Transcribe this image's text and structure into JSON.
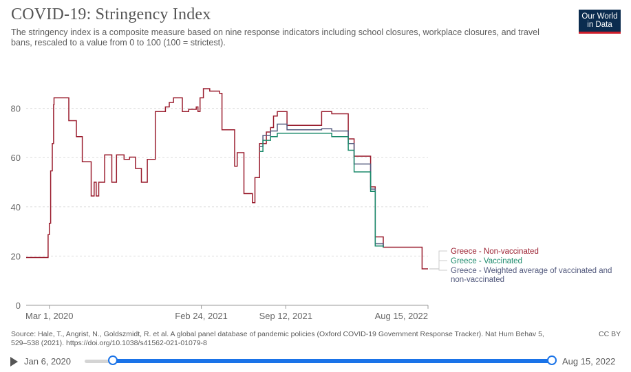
{
  "header": {
    "title": "COVID-19: Stringency Index",
    "subtitle": "The stringency index is a composite measure based on nine response indicators including school closures, workplace closures, and travel bans, rescaled to a value from 0 to 100 (100 = strictest).",
    "logo_line1": "Our World",
    "logo_line2": "in Data"
  },
  "footer": {
    "source": "Source: Hale, T., Angrist, N., Goldszmidt, R. et al. A global panel database of pandemic policies (Oxford COVID-19 Government Response Tracker). Nat Hum Behav 5, 529–538 (2021). https://doi.org/10.1038/s41562-021-01079-8",
    "license": "CC BY"
  },
  "timeline": {
    "start_label": "Jan 6, 2020",
    "end_label": "Aug 15, 2022"
  },
  "colors": {
    "non_vaccinated": "#9a1d2e",
    "vaccinated": "#1b8a6b",
    "weighted": "#535a7e",
    "grid": "#dddddd",
    "slider": "#1a73e8"
  },
  "chart_data": {
    "type": "line",
    "x_axis_type": "date",
    "xlim": [
      "2020-01-06",
      "2022-08-15"
    ],
    "ylim": [
      0,
      100
    ],
    "yticks": [
      0,
      20,
      40,
      60,
      80
    ],
    "xticks": [
      {
        "date": "2020-03-01",
        "label": "Mar 1, 2020"
      },
      {
        "date": "2021-02-24",
        "label": "Feb 24, 2021"
      },
      {
        "date": "2021-09-12",
        "label": "Sep 12, 2021"
      },
      {
        "date": "2022-08-15",
        "label": "Aug 15, 2022"
      }
    ],
    "grid": true,
    "legend_position": "right",
    "series": [
      {
        "name": "Greece - Non-vaccinated",
        "color_key": "non_vaccinated",
        "points": [
          [
            "2020-01-06",
            19.4
          ],
          [
            "2020-02-26",
            19.4
          ],
          [
            "2020-02-27",
            28.7
          ],
          [
            "2020-03-01",
            33.3
          ],
          [
            "2020-03-04",
            54.6
          ],
          [
            "2020-03-08",
            65.7
          ],
          [
            "2020-03-11",
            81.5
          ],
          [
            "2020-03-12",
            84.3
          ],
          [
            "2020-04-15",
            84.3
          ],
          [
            "2020-04-16",
            75.0
          ],
          [
            "2020-05-04",
            68.5
          ],
          [
            "2020-05-18",
            58.3
          ],
          [
            "2020-06-01",
            58.3
          ],
          [
            "2020-06-08",
            44.4
          ],
          [
            "2020-06-15",
            50.0
          ],
          [
            "2020-06-20",
            44.4
          ],
          [
            "2020-06-26",
            50.0
          ],
          [
            "2020-07-10",
            61.1
          ],
          [
            "2020-07-27",
            50.0
          ],
          [
            "2020-08-07",
            61.1
          ],
          [
            "2020-08-25",
            59.3
          ],
          [
            "2020-09-07",
            60.2
          ],
          [
            "2020-09-21",
            55.6
          ],
          [
            "2020-10-05",
            50.0
          ],
          [
            "2020-10-19",
            59.3
          ],
          [
            "2020-11-07",
            78.7
          ],
          [
            "2020-11-20",
            78.7
          ],
          [
            "2020-12-01",
            80.6
          ],
          [
            "2020-12-10",
            82.4
          ],
          [
            "2020-12-20",
            84.3
          ],
          [
            "2021-01-10",
            78.7
          ],
          [
            "2021-01-25",
            79.6
          ],
          [
            "2021-02-05",
            79.6
          ],
          [
            "2021-02-12",
            80.6
          ],
          [
            "2021-02-16",
            78.7
          ],
          [
            "2021-02-21",
            84.3
          ],
          [
            "2021-03-01",
            88.0
          ],
          [
            "2021-03-16",
            87.0
          ],
          [
            "2021-04-08",
            86.1
          ],
          [
            "2021-04-14",
            71.3
          ],
          [
            "2021-05-14",
            56.5
          ],
          [
            "2021-05-20",
            62.0
          ],
          [
            "2021-06-01",
            62.0
          ],
          [
            "2021-06-05",
            45.4
          ],
          [
            "2021-06-19",
            45.4
          ],
          [
            "2021-06-25",
            41.7
          ],
          [
            "2021-07-01",
            51.9
          ],
          [
            "2021-07-12",
            65.7
          ],
          [
            "2021-07-28",
            70.4
          ],
          [
            "2021-08-07",
            72.2
          ],
          [
            "2021-08-14",
            76.9
          ],
          [
            "2021-08-23",
            78.7
          ],
          [
            "2021-09-15",
            73.1
          ],
          [
            "2021-12-01",
            73.1
          ],
          [
            "2021-12-06",
            78.7
          ],
          [
            "2021-12-30",
            77.8
          ],
          [
            "2022-02-07",
            67.6
          ],
          [
            "2022-02-21",
            60.6
          ],
          [
            "2022-04-01",
            48.1
          ],
          [
            "2022-04-12",
            27.8
          ],
          [
            "2022-05-01",
            23.6
          ],
          [
            "2022-08-01",
            14.8
          ],
          [
            "2022-08-15",
            14.8
          ]
        ]
      },
      {
        "name": "Greece - Vaccinated",
        "color_key": "vaccinated",
        "points": [
          [
            "2021-07-12",
            62.5
          ],
          [
            "2021-07-20",
            67.0
          ],
          [
            "2021-08-07",
            68.5
          ],
          [
            "2021-08-23",
            69.9
          ],
          [
            "2021-12-30",
            68.5
          ],
          [
            "2022-02-07",
            63.0
          ],
          [
            "2022-02-21",
            54.2
          ],
          [
            "2022-04-01",
            46.3
          ],
          [
            "2022-04-12",
            24.1
          ],
          [
            "2022-05-01",
            23.6
          ]
        ]
      },
      {
        "name": "Greece - Weighted average of vaccinated and non-vaccinated",
        "color_key": "weighted",
        "points": [
          [
            "2021-07-12",
            64.5
          ],
          [
            "2021-07-20",
            69.0
          ],
          [
            "2021-08-07",
            70.8
          ],
          [
            "2021-08-23",
            73.6
          ],
          [
            "2021-09-15",
            71.3
          ],
          [
            "2021-12-01",
            71.3
          ],
          [
            "2021-12-06",
            71.7
          ],
          [
            "2021-12-30",
            70.8
          ],
          [
            "2022-02-07",
            65.7
          ],
          [
            "2022-02-21",
            57.4
          ],
          [
            "2022-04-01",
            47.2
          ],
          [
            "2022-04-12",
            25.0
          ],
          [
            "2022-05-01",
            23.6
          ]
        ]
      }
    ]
  }
}
